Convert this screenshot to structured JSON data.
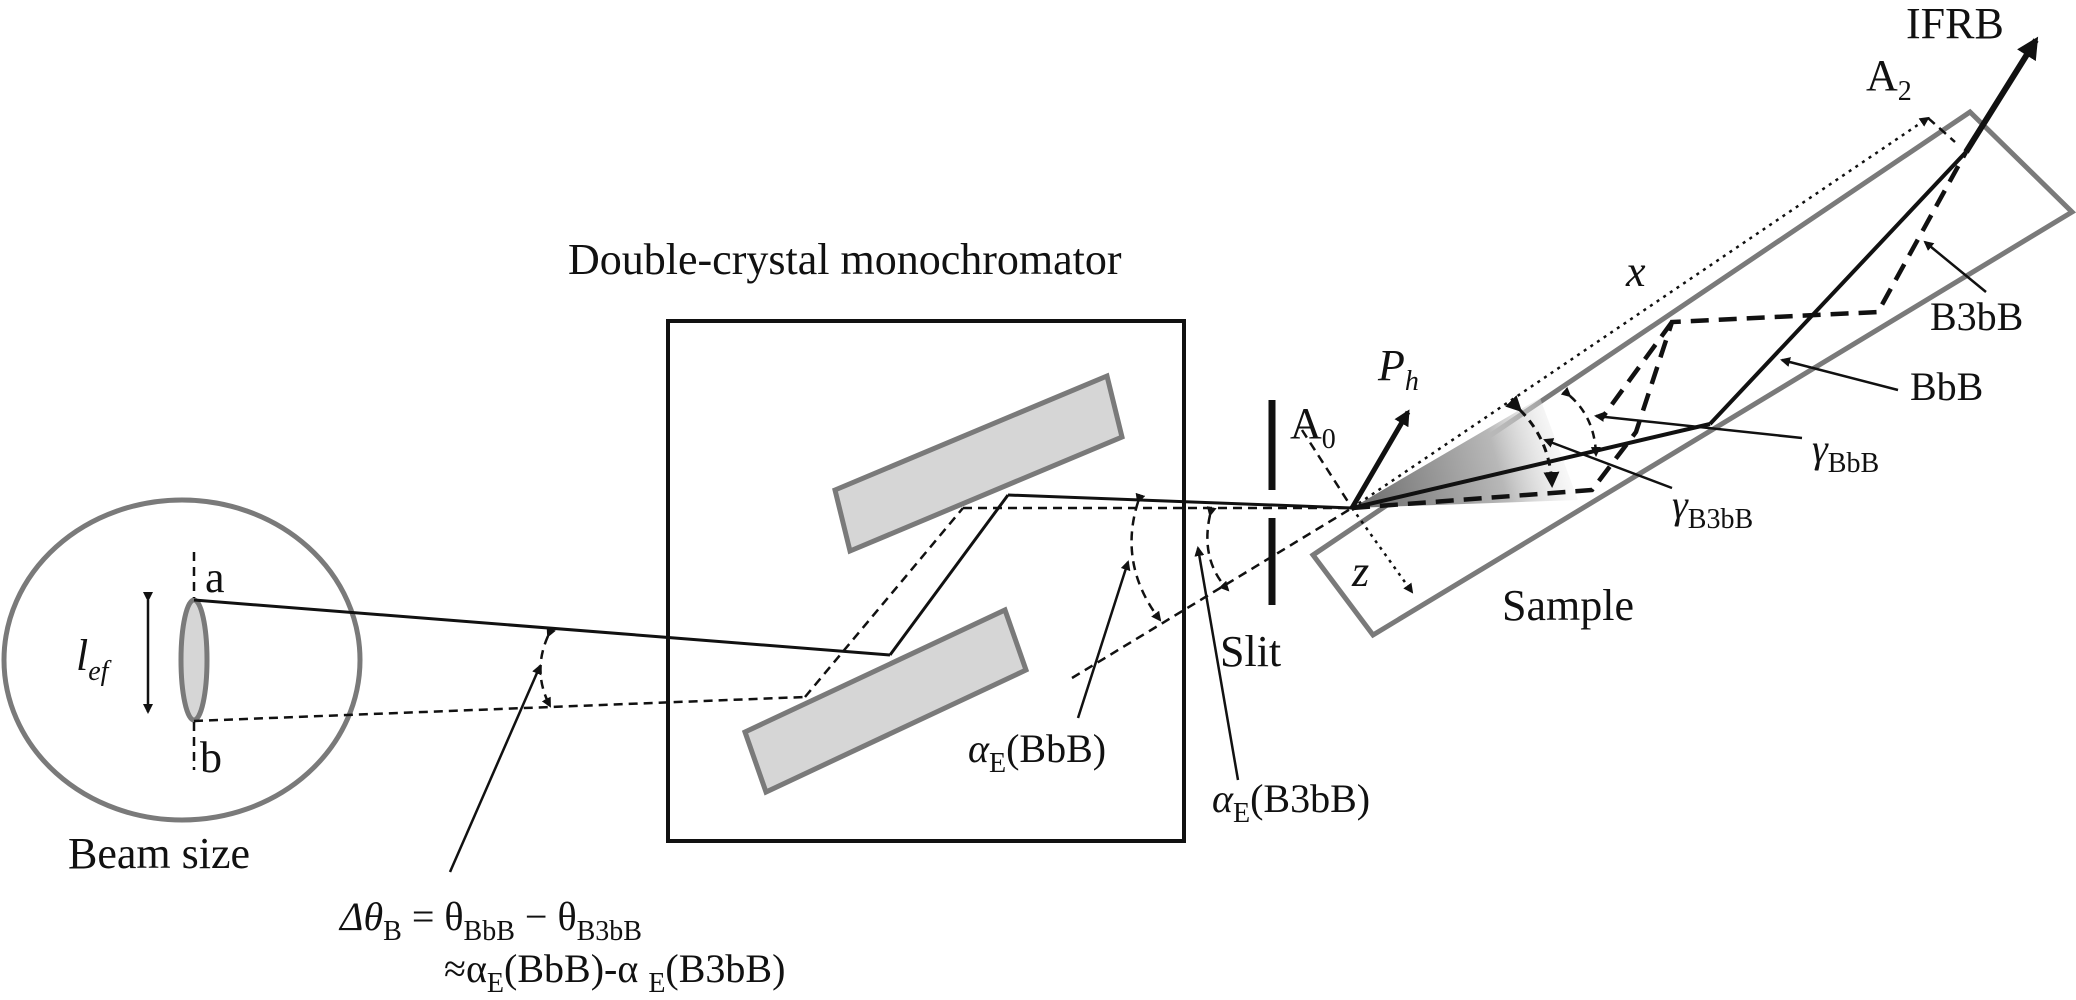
{
  "labels": {
    "beam_size": "Beam size",
    "point_a": "a",
    "point_b": "b",
    "l_ef_main": "l",
    "l_ef_sub": "ef",
    "monochromator": "Double-crystal monochromator",
    "slit": "Slit",
    "sample": "Sample",
    "ifrb": "IFRB",
    "a0_main": "A",
    "a0_sub": "0",
    "a2_main": "A",
    "a2_sub": "2",
    "x_axis": "x",
    "z_axis": "z",
    "ph_main": "P",
    "ph_sub": "h",
    "b3bb": "B3bB",
    "bbb": "BbB",
    "gamma_bbb_main": "γ",
    "gamma_bbb_sub": "BbB",
    "gamma_b3bb_main": "γ",
    "gamma_b3bb_sub": "B3bB",
    "alpha_bbb_main": "α",
    "alpha_bbb_sub": "E",
    "alpha_bbb_paren": "(BbB)",
    "alpha_b3bb_main": "α",
    "alpha_b3bb_sub": "E",
    "alpha_b3bb_paren": "(B3bB)",
    "eq_line1_delta": "Δθ",
    "eq_line1_delta_sub": "B",
    "eq_line1_eq": " = θ",
    "eq_line1_sub1": "BbB",
    "eq_line1_minus": " − θ",
    "eq_line1_sub2": "B3bB",
    "eq_line2_approx": "≈α",
    "eq_line2_sub1": "E",
    "eq_line2_mid": "(BbB)-α ",
    "eq_line2_sub2": "E",
    "eq_line2_end": "(B3bB)"
  },
  "colors": {
    "outline_gray": "#7a7a7a",
    "crystal_fill": "#d6d6d6",
    "line": "#111111",
    "wedge_dark": "#7d7d7d"
  },
  "icons": {
    "beam_spot": "ellipse",
    "ph_arrow": "arrow",
    "ifrb_arrow": "arrow"
  }
}
